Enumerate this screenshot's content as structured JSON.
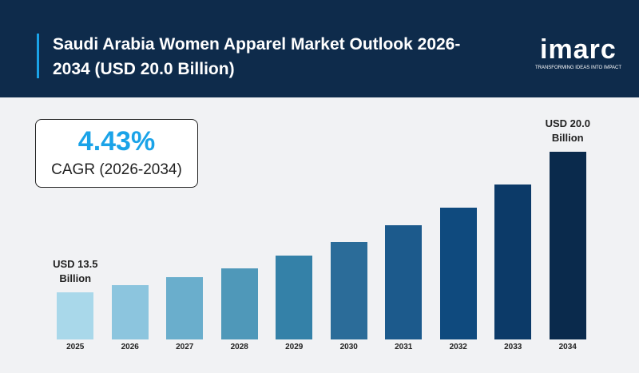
{
  "chart_data": {
    "type": "bar",
    "title": "Saudi Arabia Women Apparel Market Outlook 2026-2034 (USD 20.0 Billion)",
    "logo": {
      "name": "imarc",
      "tagline": "TRANSFORMING IDEAS INTO IMPACT"
    },
    "cagr": {
      "value": "4.43%",
      "label": "CAGR (2026-2034)"
    },
    "categories": [
      "2025",
      "2026",
      "2027",
      "2028",
      "2029",
      "2030",
      "2031",
      "2032",
      "2033",
      "2034"
    ],
    "values": [
      13.5,
      13.8,
      14.2,
      14.6,
      15.2,
      15.8,
      16.6,
      17.4,
      18.5,
      20.0
    ],
    "value_labels": [
      "USD 13.5 Billion",
      null,
      null,
      null,
      null,
      null,
      null,
      null,
      null,
      "USD 20.0 Billion"
    ],
    "colors": [
      "#a9d8ea",
      "#8cc5de",
      "#6aaecc",
      "#4f98b9",
      "#3481a8",
      "#2b6c99",
      "#1c5a8c",
      "#0f4a7e",
      "#0c3a68",
      "#0a2a4c"
    ],
    "ylim": [
      11.3,
      20.0
    ]
  }
}
